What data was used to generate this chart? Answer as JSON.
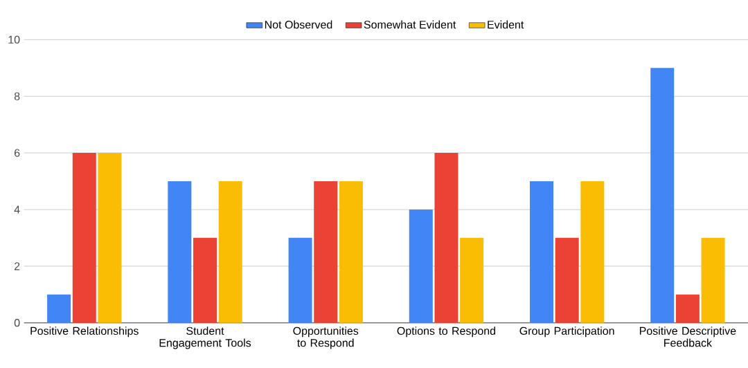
{
  "chart_data": {
    "type": "bar",
    "categories": [
      "Positive Relationships",
      "Student Engagement Tools",
      "Opportunities to Respond",
      "Options to Respond",
      "Group Participation",
      "Positive Descriptive Feedback"
    ],
    "series": [
      {
        "name": "Not Observed",
        "color": "#4285f4",
        "values": [
          1,
          5,
          3,
          4,
          5,
          9
        ]
      },
      {
        "name": "Somewhat Evident",
        "color": "#ea4335",
        "values": [
          6,
          3,
          5,
          6,
          3,
          1
        ]
      },
      {
        "name": "Evident",
        "color": "#fbbc04",
        "values": [
          6,
          5,
          5,
          3,
          5,
          3
        ]
      }
    ],
    "ylim": [
      0,
      10
    ],
    "yticks": [
      0,
      2,
      4,
      6,
      8,
      10
    ],
    "grid": "y",
    "legend": "top"
  }
}
